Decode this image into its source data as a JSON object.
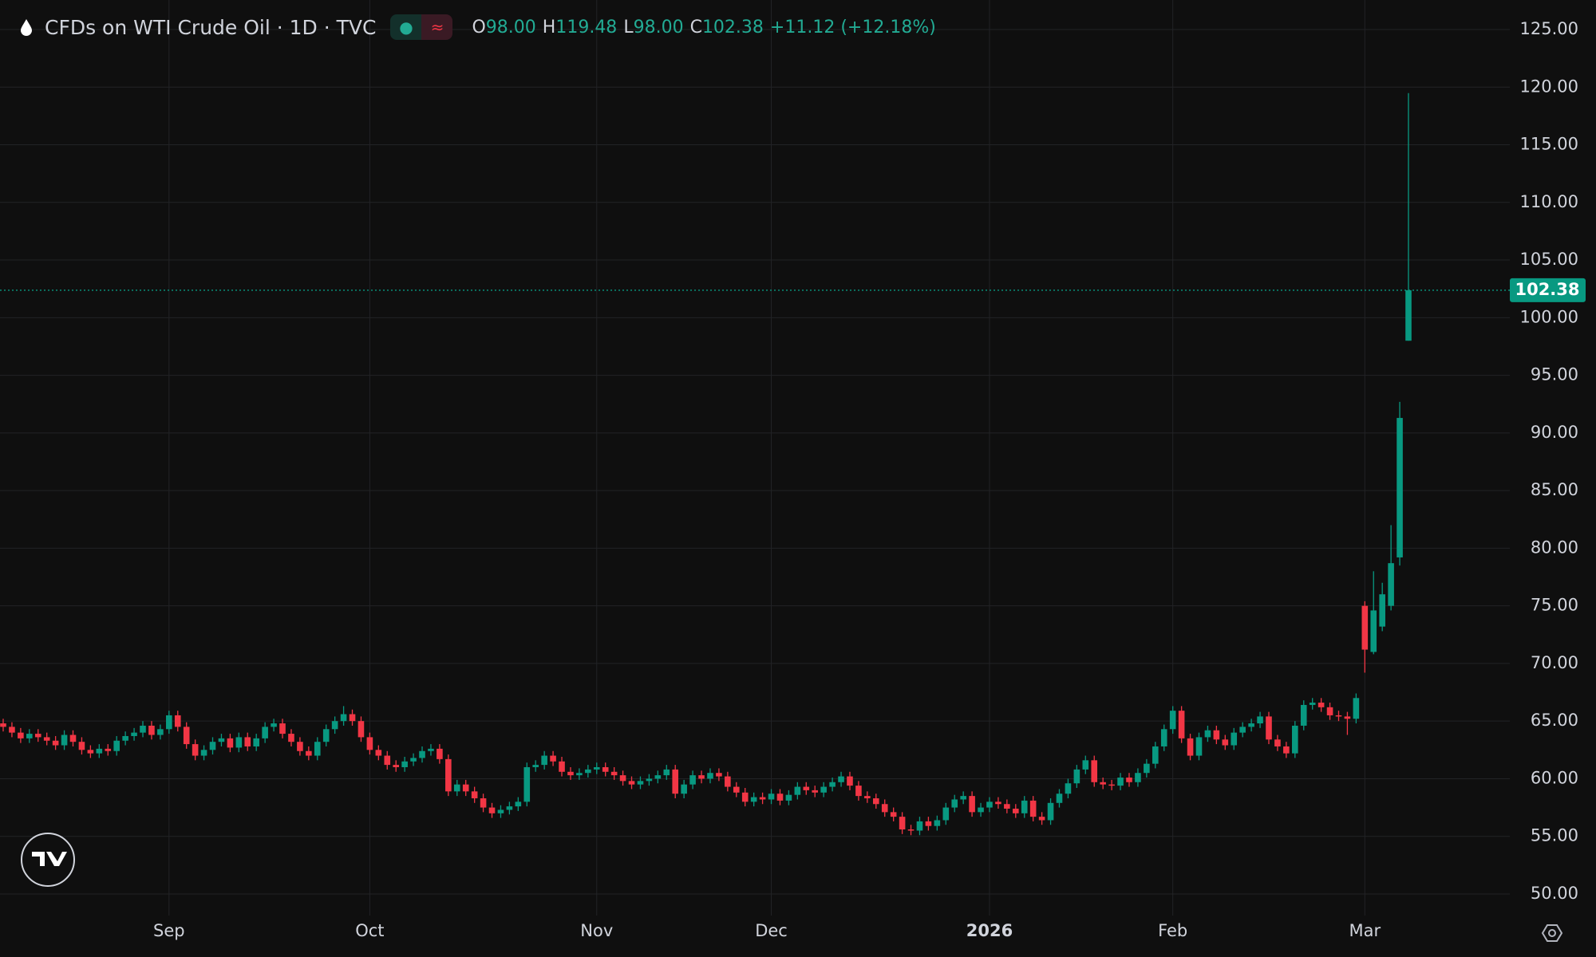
{
  "header": {
    "title": "CFDs on WTI Crude Oil · 1D · TVC",
    "ohlc": [
      {
        "label": "O",
        "value": "98.00"
      },
      {
        "label": "H",
        "value": "119.48"
      },
      {
        "label": "L",
        "value": "98.00"
      },
      {
        "label": "C",
        "value": "102.38"
      }
    ],
    "change": "+11.12 (+12.18%)"
  },
  "chart_data": {
    "type": "candlestick",
    "categories": [
      null,
      null,
      null,
      null,
      null,
      null,
      null,
      null,
      null,
      null,
      null,
      null,
      null,
      null,
      null,
      null,
      null,
      null,
      null,
      "Sep",
      null,
      null,
      null,
      null,
      null,
      null,
      null,
      null,
      null,
      null,
      null,
      null,
      null,
      null,
      null,
      null,
      null,
      null,
      null,
      null,
      null,
      null,
      "Oct",
      null,
      null,
      null,
      null,
      null,
      null,
      null,
      null,
      null,
      null,
      null,
      null,
      null,
      null,
      null,
      null,
      null,
      null,
      null,
      null,
      null,
      null,
      null,
      null,
      null,
      "Nov",
      null,
      null,
      null,
      null,
      null,
      null,
      null,
      null,
      null,
      null,
      null,
      null,
      null,
      null,
      null,
      null,
      null,
      null,
      null,
      "Dec",
      null,
      null,
      null,
      null,
      null,
      null,
      null,
      null,
      null,
      null,
      null,
      null,
      null,
      null,
      null,
      null,
      null,
      null,
      null,
      null,
      null,
      null,
      null,
      null,
      "2026",
      null,
      null,
      null,
      null,
      null,
      null,
      null,
      null,
      null,
      null,
      null,
      null,
      null,
      null,
      null,
      null,
      null,
      null,
      null,
      null,
      "Feb",
      null,
      null,
      null,
      null,
      null,
      null,
      null,
      null,
      null,
      null,
      null,
      null,
      null,
      null,
      null,
      null,
      null,
      null,
      null,
      null,
      null,
      "Mar",
      null,
      null,
      null,
      null,
      null
    ],
    "open": [
      64.8,
      64.5,
      64.0,
      63.5,
      63.9,
      63.6,
      63.3,
      62.9,
      63.8,
      63.2,
      62.5,
      62.2,
      62.6,
      62.4,
      63.3,
      63.7,
      64.0,
      64.6,
      63.8,
      64.3,
      65.5,
      64.5,
      63.0,
      62.0,
      62.5,
      63.2,
      63.5,
      62.7,
      63.6,
      62.8,
      63.5,
      64.5,
      64.8,
      63.9,
      63.2,
      62.4,
      62.0,
      63.2,
      64.3,
      65.0,
      65.6,
      65.0,
      63.6,
      62.5,
      62.0,
      61.2,
      61.0,
      61.5,
      61.8,
      62.4,
      62.6,
      61.7,
      58.9,
      59.5,
      58.9,
      58.3,
      57.5,
      57.0,
      57.3,
      57.6,
      58.0,
      61.0,
      61.2,
      62.0,
      61.5,
      60.6,
      60.3,
      60.5,
      60.8,
      61.0,
      60.6,
      60.3,
      59.8,
      59.5,
      59.8,
      60.0,
      60.3,
      60.8,
      58.7,
      59.5,
      60.3,
      60.0,
      60.5,
      60.2,
      59.3,
      58.8,
      58.0,
      58.4,
      58.2,
      58.7,
      58.1,
      58.6,
      59.3,
      59.0,
      58.8,
      59.3,
      59.7,
      60.2,
      59.4,
      58.5,
      58.3,
      57.8,
      57.1,
      56.7,
      55.6,
      55.5,
      56.3,
      55.9,
      56.4,
      57.5,
      58.2,
      58.5,
      57.1,
      57.5,
      58.0,
      57.8,
      57.4,
      57.0,
      58.1,
      56.7,
      56.4,
      57.9,
      58.7,
      59.6,
      60.8,
      61.6,
      59.7,
      59.5,
      59.4,
      60.1,
      59.7,
      60.5,
      61.3,
      62.8,
      64.3,
      65.9,
      63.5,
      62.0,
      63.6,
      64.2,
      63.4,
      62.9,
      64.0,
      64.5,
      64.8,
      65.4,
      63.4,
      62.8,
      62.2,
      64.6,
      66.4,
      66.6,
      66.2,
      65.5,
      65.4,
      65.2,
      75.0,
      71.0,
      73.2,
      75.0,
      79.2,
      98.0
    ],
    "high": [
      65.2,
      64.9,
      64.4,
      64.3,
      64.3,
      64.0,
      63.7,
      64.2,
      64.2,
      63.6,
      62.9,
      63.0,
      63.0,
      63.7,
      64.1,
      64.4,
      65.0,
      65.0,
      64.7,
      65.9,
      65.9,
      64.9,
      63.4,
      62.9,
      63.6,
      63.9,
      63.9,
      64.0,
      64.0,
      63.9,
      64.9,
      65.2,
      65.2,
      64.3,
      63.6,
      62.8,
      63.6,
      64.7,
      65.4,
      66.3,
      66.0,
      65.4,
      64.0,
      62.9,
      62.4,
      61.6,
      61.9,
      62.2,
      62.8,
      63.0,
      63.0,
      62.1,
      59.9,
      59.9,
      59.3,
      58.7,
      57.9,
      57.7,
      58.0,
      58.4,
      61.4,
      61.6,
      62.4,
      62.4,
      61.9,
      61.0,
      60.9,
      61.2,
      61.4,
      61.4,
      61.0,
      60.7,
      60.2,
      60.2,
      60.4,
      60.7,
      61.2,
      61.2,
      59.9,
      60.7,
      60.7,
      60.9,
      60.9,
      60.6,
      59.7,
      59.2,
      58.8,
      58.8,
      59.1,
      59.1,
      59.0,
      59.7,
      59.7,
      59.4,
      59.7,
      60.1,
      60.6,
      60.6,
      59.8,
      58.9,
      58.7,
      58.2,
      57.5,
      57.1,
      56.0,
      56.7,
      56.7,
      56.8,
      57.9,
      58.6,
      58.9,
      58.9,
      57.9,
      58.4,
      58.4,
      58.2,
      57.8,
      58.5,
      58.5,
      57.1,
      58.3,
      59.1,
      60.0,
      61.2,
      62.0,
      62.0,
      60.1,
      59.9,
      60.5,
      60.5,
      60.9,
      61.7,
      63.2,
      64.7,
      66.3,
      66.3,
      63.9,
      64.0,
      64.6,
      64.6,
      63.8,
      64.4,
      64.9,
      65.2,
      65.8,
      65.8,
      63.8,
      63.2,
      65.0,
      66.8,
      67.0,
      67.0,
      66.6,
      65.9,
      65.8,
      67.4,
      75.4,
      78.0,
      77.0,
      82.0,
      92.7,
      119.48
    ],
    "low": [
      64.1,
      63.6,
      63.1,
      63.1,
      63.2,
      62.9,
      62.5,
      62.5,
      62.8,
      62.1,
      61.8,
      61.8,
      62.0,
      62.0,
      62.9,
      63.3,
      63.6,
      63.4,
      63.4,
      63.9,
      64.1,
      62.6,
      61.6,
      61.6,
      62.1,
      62.8,
      62.3,
      62.3,
      62.4,
      62.4,
      63.1,
      64.1,
      63.5,
      62.8,
      62.0,
      61.6,
      61.6,
      62.8,
      63.9,
      64.6,
      64.6,
      63.2,
      62.1,
      61.6,
      60.8,
      60.6,
      60.6,
      61.1,
      61.4,
      62.0,
      61.3,
      58.5,
      58.5,
      58.5,
      57.9,
      57.1,
      56.6,
      56.6,
      56.9,
      57.2,
      57.6,
      60.6,
      60.8,
      61.1,
      60.2,
      59.9,
      59.9,
      60.1,
      60.4,
      60.2,
      59.9,
      59.4,
      59.1,
      59.1,
      59.4,
      59.6,
      59.9,
      58.3,
      58.3,
      59.1,
      59.6,
      59.6,
      59.8,
      58.9,
      58.4,
      57.6,
      57.6,
      57.8,
      57.8,
      57.7,
      57.7,
      58.2,
      58.6,
      58.4,
      58.4,
      58.9,
      59.3,
      59.0,
      58.1,
      57.9,
      57.4,
      56.7,
      56.3,
      55.2,
      55.1,
      55.1,
      55.5,
      55.5,
      56.0,
      57.1,
      57.8,
      56.7,
      56.7,
      57.1,
      57.4,
      57.0,
      56.6,
      56.6,
      56.3,
      56.0,
      56.0,
      57.5,
      58.3,
      59.2,
      60.4,
      59.3,
      59.1,
      59.0,
      59.0,
      59.3,
      59.3,
      60.1,
      60.9,
      62.4,
      63.9,
      63.1,
      61.6,
      61.6,
      63.2,
      63.0,
      62.5,
      62.5,
      63.6,
      64.1,
      64.4,
      63.0,
      62.4,
      61.8,
      61.8,
      64.2,
      66.0,
      65.8,
      65.1,
      65.0,
      63.8,
      64.8,
      69.2,
      70.8,
      72.8,
      74.6,
      78.5,
      98.0
    ],
    "close": [
      64.5,
      64.0,
      63.5,
      63.9,
      63.6,
      63.3,
      62.9,
      63.8,
      63.2,
      62.5,
      62.2,
      62.6,
      62.4,
      63.3,
      63.7,
      64.0,
      64.6,
      63.8,
      64.3,
      65.5,
      64.5,
      63.0,
      62.0,
      62.5,
      63.2,
      63.5,
      62.7,
      63.6,
      62.8,
      63.5,
      64.5,
      64.8,
      63.9,
      63.2,
      62.4,
      62.0,
      63.2,
      64.3,
      65.0,
      65.6,
      65.0,
      63.6,
      62.5,
      62.0,
      61.2,
      61.0,
      61.5,
      61.8,
      62.4,
      62.6,
      61.7,
      58.9,
      59.5,
      58.9,
      58.3,
      57.5,
      57.0,
      57.3,
      57.6,
      58.0,
      61.0,
      61.2,
      62.0,
      61.5,
      60.6,
      60.3,
      60.5,
      60.8,
      61.0,
      60.6,
      60.3,
      59.8,
      59.5,
      59.8,
      60.0,
      60.3,
      60.8,
      58.7,
      59.5,
      60.3,
      60.0,
      60.5,
      60.2,
      59.3,
      58.8,
      58.0,
      58.4,
      58.2,
      58.7,
      58.1,
      58.6,
      59.3,
      59.0,
      58.8,
      59.3,
      59.7,
      60.2,
      59.4,
      58.5,
      58.3,
      57.8,
      57.1,
      56.7,
      55.6,
      55.5,
      56.3,
      55.9,
      56.4,
      57.5,
      58.2,
      58.5,
      57.1,
      57.5,
      58.0,
      57.8,
      57.4,
      57.0,
      58.1,
      56.7,
      56.4,
      57.9,
      58.7,
      59.6,
      60.8,
      61.6,
      59.7,
      59.5,
      59.4,
      60.1,
      59.7,
      60.5,
      61.3,
      62.8,
      64.3,
      65.9,
      63.5,
      62.0,
      63.6,
      64.2,
      63.4,
      62.9,
      64.0,
      64.5,
      64.8,
      65.4,
      63.4,
      62.8,
      62.2,
      64.6,
      66.4,
      66.6,
      66.2,
      65.5,
      65.4,
      65.2,
      67.0,
      71.2,
      74.6,
      76.0,
      78.7,
      91.3,
      102.38
    ],
    "up_color": "#089981",
    "down_color": "#f23645",
    "ylim": [
      48.13,
      127.56
    ],
    "yticks": [
      {
        "value": 50,
        "label": "50.00"
      },
      {
        "value": 55,
        "label": "55.00"
      },
      {
        "value": 60,
        "label": "60.00"
      },
      {
        "value": 65,
        "label": "65.00"
      },
      {
        "value": 70,
        "label": "70.00"
      },
      {
        "value": 75,
        "label": "75.00"
      },
      {
        "value": 80,
        "label": "80.00"
      },
      {
        "value": 85,
        "label": "85.00"
      },
      {
        "value": 90,
        "label": "90.00"
      },
      {
        "value": 95,
        "label": "95.00"
      },
      {
        "value": 100,
        "label": "100.00"
      },
      {
        "value": 105,
        "label": "105.00"
      },
      {
        "value": 110,
        "label": "110.00"
      },
      {
        "value": 115,
        "label": "115.00"
      },
      {
        "value": 120,
        "label": "120.00"
      },
      {
        "value": 125,
        "label": "125.00"
      }
    ],
    "grid": true,
    "last_price_line": true
  }
}
